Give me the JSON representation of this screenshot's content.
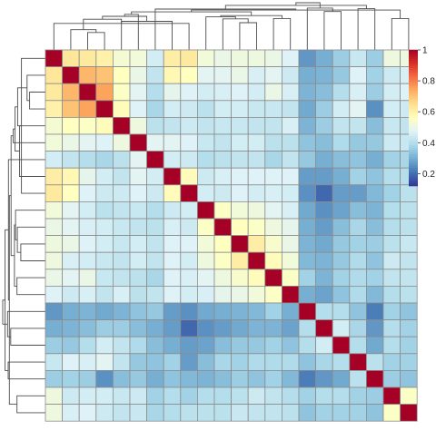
{
  "chart_data": {
    "type": "heatmap",
    "title": "",
    "xlabel": "",
    "ylabel": "",
    "n": 22,
    "diagonal_value": 1.0,
    "values": [
      [
        1.0,
        0.63,
        0.62,
        0.6,
        0.53,
        0.52,
        0.45,
        0.61,
        0.62,
        0.52,
        0.5,
        0.51,
        0.51,
        0.5,
        0.47,
        0.26,
        0.3,
        0.36,
        0.43,
        0.36,
        0.51,
        0.51
      ],
      [
        0.63,
        1.0,
        0.72,
        0.7,
        0.56,
        0.5,
        0.42,
        0.58,
        0.56,
        0.48,
        0.48,
        0.5,
        0.46,
        0.48,
        0.44,
        0.3,
        0.31,
        0.35,
        0.47,
        0.37,
        0.44,
        0.46
      ],
      [
        0.62,
        0.72,
        1.0,
        0.75,
        0.55,
        0.48,
        0.4,
        0.49,
        0.47,
        0.45,
        0.46,
        0.47,
        0.45,
        0.5,
        0.46,
        0.31,
        0.33,
        0.4,
        0.46,
        0.36,
        0.45,
        0.47
      ],
      [
        0.6,
        0.7,
        0.75,
        1.0,
        0.57,
        0.47,
        0.38,
        0.45,
        0.44,
        0.41,
        0.45,
        0.45,
        0.43,
        0.43,
        0.42,
        0.29,
        0.36,
        0.45,
        0.48,
        0.25,
        0.45,
        0.44
      ],
      [
        0.53,
        0.56,
        0.55,
        0.57,
        1.0,
        0.51,
        0.41,
        0.42,
        0.44,
        0.42,
        0.43,
        0.43,
        0.42,
        0.42,
        0.46,
        0.31,
        0.36,
        0.42,
        0.42,
        0.33,
        0.43,
        0.42
      ],
      [
        0.52,
        0.5,
        0.48,
        0.47,
        0.51,
        1.0,
        0.48,
        0.48,
        0.47,
        0.43,
        0.42,
        0.45,
        0.45,
        0.41,
        0.41,
        0.34,
        0.33,
        0.39,
        0.35,
        0.35,
        0.44,
        0.43
      ],
      [
        0.45,
        0.42,
        0.4,
        0.38,
        0.41,
        0.48,
        1.0,
        0.45,
        0.44,
        0.4,
        0.41,
        0.42,
        0.42,
        0.38,
        0.42,
        0.35,
        0.3,
        0.33,
        0.34,
        0.3,
        0.37,
        0.38
      ],
      [
        0.61,
        0.58,
        0.49,
        0.45,
        0.42,
        0.48,
        0.45,
        1.0,
        0.57,
        0.44,
        0.46,
        0.47,
        0.47,
        0.47,
        0.47,
        0.27,
        0.27,
        0.3,
        0.37,
        0.34,
        0.4,
        0.4
      ],
      [
        0.62,
        0.56,
        0.47,
        0.44,
        0.44,
        0.47,
        0.44,
        0.57,
        1.0,
        0.45,
        0.44,
        0.47,
        0.45,
        0.46,
        0.45,
        0.25,
        0.19,
        0.27,
        0.27,
        0.32,
        0.37,
        0.41
      ],
      [
        0.52,
        0.48,
        0.45,
        0.41,
        0.42,
        0.43,
        0.4,
        0.44,
        0.45,
        1.0,
        0.55,
        0.52,
        0.51,
        0.48,
        0.46,
        0.29,
        0.25,
        0.28,
        0.33,
        0.31,
        0.4,
        0.41
      ],
      [
        0.5,
        0.48,
        0.46,
        0.45,
        0.43,
        0.42,
        0.41,
        0.46,
        0.44,
        0.55,
        1.0,
        0.56,
        0.55,
        0.51,
        0.49,
        0.3,
        0.27,
        0.33,
        0.38,
        0.33,
        0.4,
        0.41
      ],
      [
        0.51,
        0.5,
        0.47,
        0.45,
        0.43,
        0.45,
        0.42,
        0.47,
        0.47,
        0.52,
        0.56,
        1.0,
        0.61,
        0.54,
        0.5,
        0.31,
        0.29,
        0.35,
        0.37,
        0.36,
        0.41,
        0.43
      ],
      [
        0.51,
        0.46,
        0.45,
        0.43,
        0.42,
        0.45,
        0.42,
        0.47,
        0.45,
        0.51,
        0.55,
        0.61,
        1.0,
        0.57,
        0.52,
        0.32,
        0.31,
        0.35,
        0.39,
        0.34,
        0.44,
        0.42
      ],
      [
        0.5,
        0.48,
        0.5,
        0.43,
        0.42,
        0.41,
        0.38,
        0.47,
        0.46,
        0.48,
        0.51,
        0.54,
        0.57,
        1.0,
        0.55,
        0.37,
        0.31,
        0.37,
        0.39,
        0.37,
        0.42,
        0.42
      ],
      [
        0.47,
        0.44,
        0.46,
        0.42,
        0.46,
        0.41,
        0.42,
        0.47,
        0.45,
        0.46,
        0.49,
        0.5,
        0.52,
        0.55,
        1.0,
        0.3,
        0.28,
        0.34,
        0.39,
        0.32,
        0.4,
        0.41
      ],
      [
        0.26,
        0.3,
        0.31,
        0.29,
        0.31,
        0.34,
        0.35,
        0.27,
        0.25,
        0.29,
        0.3,
        0.31,
        0.32,
        0.37,
        0.3,
        1.0,
        0.4,
        0.4,
        0.34,
        0.22,
        0.37,
        0.34
      ],
      [
        0.3,
        0.31,
        0.33,
        0.36,
        0.36,
        0.33,
        0.3,
        0.27,
        0.19,
        0.25,
        0.27,
        0.29,
        0.31,
        0.31,
        0.28,
        0.4,
        1.0,
        0.45,
        0.38,
        0.26,
        0.4,
        0.37
      ],
      [
        0.36,
        0.35,
        0.4,
        0.45,
        0.42,
        0.39,
        0.33,
        0.3,
        0.27,
        0.28,
        0.33,
        0.35,
        0.35,
        0.37,
        0.34,
        0.4,
        0.45,
        1.0,
        0.4,
        0.29,
        0.4,
        0.37
      ],
      [
        0.43,
        0.47,
        0.46,
        0.48,
        0.42,
        0.35,
        0.34,
        0.37,
        0.27,
        0.33,
        0.38,
        0.37,
        0.39,
        0.39,
        0.39,
        0.34,
        0.38,
        0.4,
        1.0,
        0.41,
        0.37,
        0.37
      ],
      [
        0.36,
        0.37,
        0.36,
        0.25,
        0.33,
        0.35,
        0.3,
        0.34,
        0.32,
        0.31,
        0.33,
        0.36,
        0.34,
        0.37,
        0.32,
        0.22,
        0.26,
        0.29,
        0.41,
        1.0,
        0.36,
        0.34
      ],
      [
        0.51,
        0.44,
        0.45,
        0.45,
        0.43,
        0.44,
        0.37,
        0.4,
        0.37,
        0.4,
        0.4,
        0.41,
        0.44,
        0.42,
        0.4,
        0.37,
        0.4,
        0.4,
        0.37,
        0.36,
        1.0,
        0.55
      ],
      [
        0.51,
        0.46,
        0.47,
        0.44,
        0.42,
        0.43,
        0.38,
        0.4,
        0.41,
        0.41,
        0.41,
        0.43,
        0.42,
        0.42,
        0.41,
        0.34,
        0.37,
        0.37,
        0.37,
        0.34,
        0.55,
        1.0
      ]
    ],
    "color_scale": {
      "min": 0.12,
      "max": 1.0,
      "colors": [
        "#313695",
        "#4575b4",
        "#74add1",
        "#abd9e9",
        "#e0f3f8",
        "#ffffbf",
        "#fee090",
        "#fdae61",
        "#f46d43",
        "#d73027",
        "#a50026"
      ]
    },
    "legend": {
      "placement": "right",
      "ticks": [
        "0.2",
        "0.4",
        "0.6",
        "0.8",
        "1"
      ],
      "tick_values": [
        0.2,
        0.4,
        0.6,
        0.8,
        1.0
      ]
    },
    "cell_border_color": "#8c8c8c",
    "dendrogram_color": "#4d4d4d",
    "dendrogram_placement": [
      "top",
      "left"
    ]
  }
}
